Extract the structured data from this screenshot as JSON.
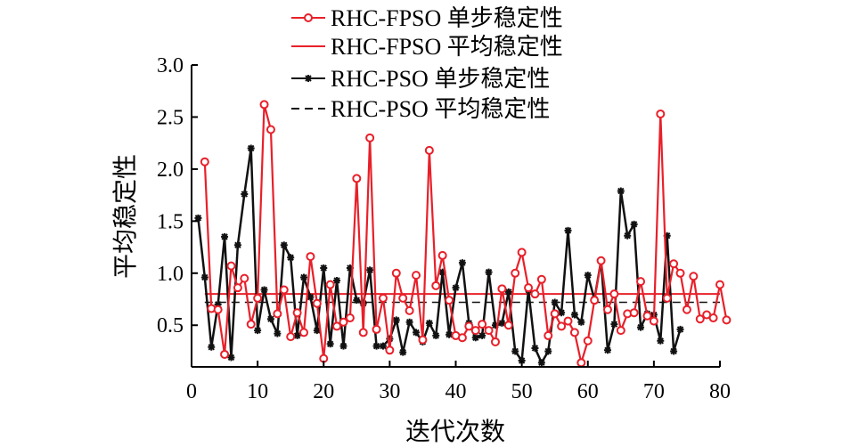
{
  "chart_data": {
    "type": "line",
    "xlabel": "迭代次数",
    "ylabel": "平均稳定性",
    "xlim": [
      0,
      80
    ],
    "ylim": [
      0.1,
      3.0
    ],
    "x_ticks": [
      0,
      10,
      20,
      30,
      40,
      50,
      60,
      70,
      80
    ],
    "y_ticks": [
      0.5,
      1.0,
      1.5,
      2.0,
      2.5,
      3.0
    ],
    "x_tick_labels": [
      "0",
      "10",
      "20",
      "30",
      "40",
      "50",
      "60",
      "70",
      "80"
    ],
    "y_tick_labels": [
      "0.5",
      "1.0",
      "1.5",
      "2.0",
      "2.5",
      "3.0"
    ],
    "legend_position": "top-center",
    "series": [
      {
        "name": "RHC-FPSO 单步稳定性",
        "color": "#e8202a",
        "style": "line-circle-marker",
        "x_start": 2,
        "values": [
          2.07,
          0.66,
          0.65,
          0.22,
          1.07,
          0.86,
          0.95,
          0.51,
          0.76,
          2.62,
          2.38,
          0.61,
          0.84,
          0.39,
          0.62,
          0.43,
          1.16,
          0.71,
          0.18,
          0.89,
          0.49,
          0.53,
          0.57,
          1.91,
          0.43,
          2.3,
          0.46,
          0.76,
          0.26,
          1.0,
          0.76,
          0.64,
          0.98,
          0.36,
          2.18,
          0.88,
          1.17,
          0.74,
          0.4,
          0.38,
          0.49,
          0.45,
          0.51,
          0.45,
          0.34,
          0.85,
          0.5,
          1.0,
          1.2,
          0.86,
          0.8,
          0.94,
          0.4,
          0.61,
          0.49,
          0.54,
          0.43,
          0.14,
          0.35,
          0.74,
          1.12,
          0.65,
          0.8,
          0.45,
          0.61,
          0.62,
          0.92,
          0.59,
          0.54,
          2.53,
          0.76,
          1.09,
          1.0,
          0.65,
          0.97,
          0.56,
          0.6,
          0.57,
          0.89,
          0.55
        ]
      },
      {
        "name": "RHC-FPSO 平均稳定性",
        "color": "#e8202a",
        "style": "solid-line",
        "value": 0.8,
        "x_range": [
          2,
          80
        ]
      },
      {
        "name": "RHC-PSO 单步稳定性",
        "color": "#111111",
        "style": "line-star-marker",
        "x_start": 1,
        "values": [
          1.53,
          0.96,
          0.29,
          0.7,
          1.35,
          0.19,
          1.27,
          1.76,
          2.2,
          0.45,
          0.84,
          0.56,
          0.42,
          1.27,
          1.15,
          0.4,
          0.96,
          0.77,
          0.45,
          1.05,
          0.32,
          0.93,
          0.3,
          1.05,
          0.74,
          0.71,
          1.03,
          0.3,
          0.3,
          0.37,
          0.55,
          0.24,
          0.53,
          0.43,
          0.34,
          0.52,
          0.4,
          1.01,
          0.41,
          0.86,
          1.1,
          0.52,
          0.38,
          0.4,
          1.01,
          0.5,
          0.52,
          0.82,
          0.25,
          0.16,
          0.84,
          0.28,
          0.14,
          0.25,
          0.72,
          0.62,
          1.41,
          0.6,
          0.53,
          0.98,
          0.75,
          1.12,
          0.26,
          0.51,
          1.79,
          1.36,
          1.47,
          0.48,
          0.61,
          0.6,
          0.35,
          1.36,
          0.25,
          0.46
        ]
      },
      {
        "name": "RHC-PSO 平均稳定性",
        "color": "#111111",
        "style": "dashed-line",
        "value": 0.72,
        "x_range": [
          2,
          80
        ]
      }
    ]
  }
}
